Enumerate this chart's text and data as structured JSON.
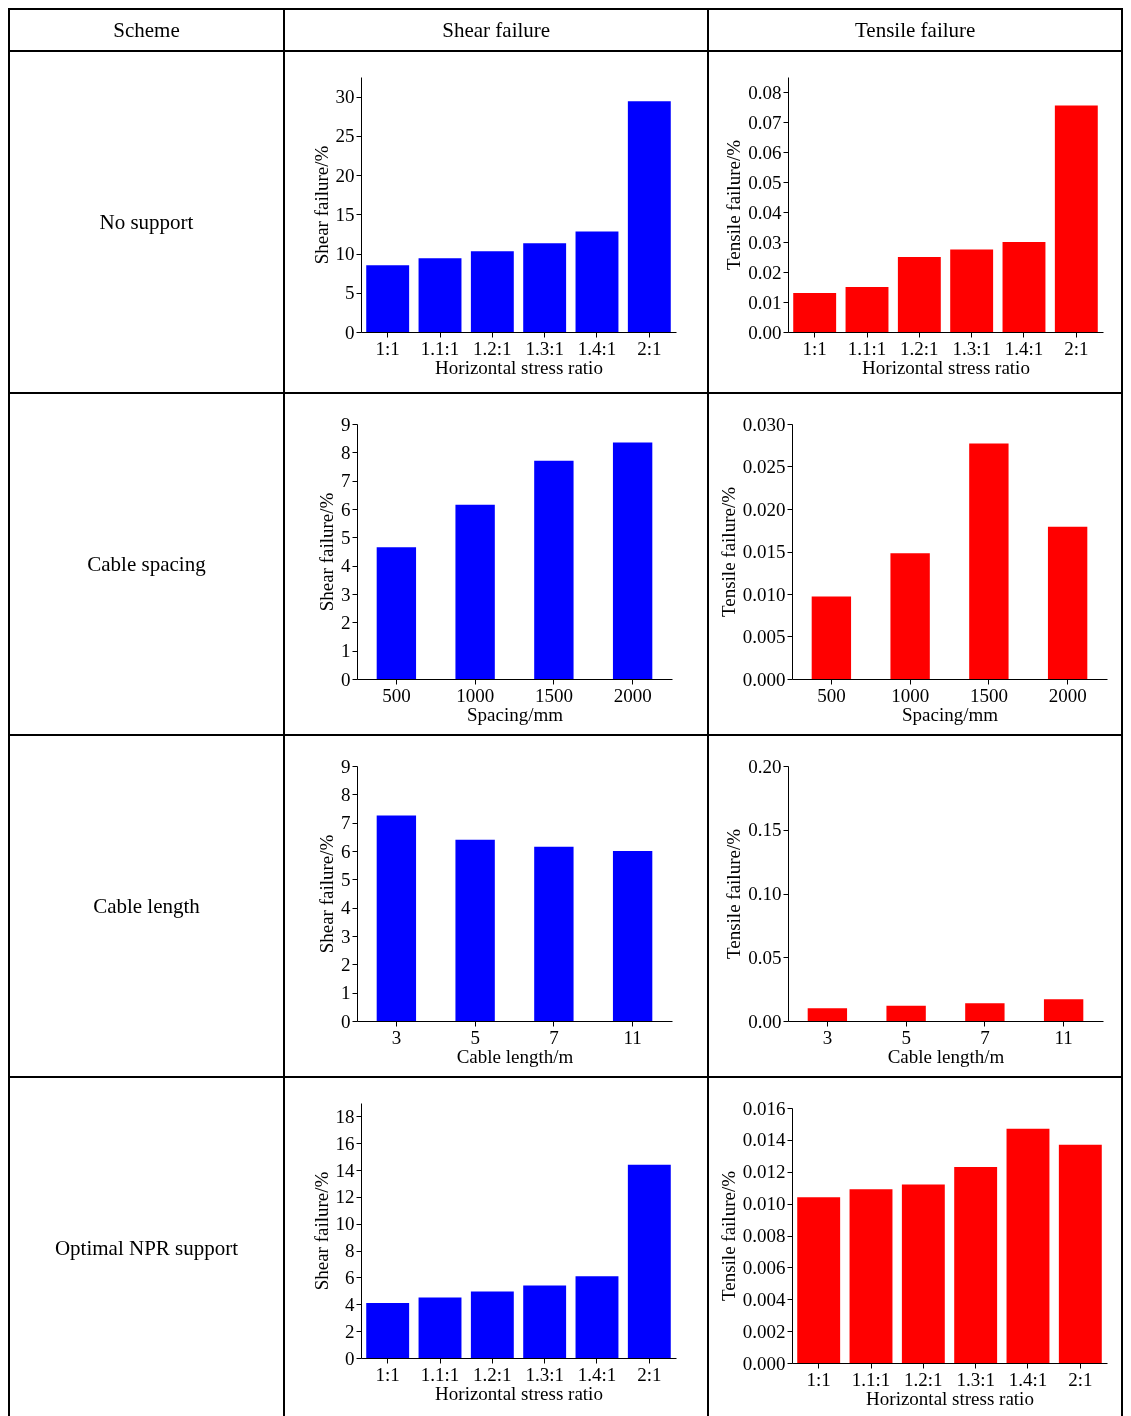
{
  "chart_data": [
    {
      "type": "other",
      "annotations": [
        "Scheme",
        "Shear failure",
        "Tensile failure"
      ]
    },
    {
      "type": "other",
      "annotations": [
        "No support"
      ]
    },
    {
      "type": "bar",
      "xlabel": "Horizontal stress ratio",
      "ylabel": "Shear failure/%",
      "categories": [
        "1:1",
        "1.1:1",
        "1.2:1",
        "1.3:1",
        "1.4:1",
        "2:1"
      ],
      "values": [
        8.5,
        9.4,
        10.3,
        11.3,
        12.8,
        29.4
      ],
      "color": "#0000ff",
      "ylim": [
        0,
        32.5
      ],
      "yticks": [
        0,
        5,
        10,
        15,
        20,
        25,
        30
      ]
    },
    {
      "type": "bar",
      "xlabel": "Horizontal stress ratio",
      "ylabel": "Tensile failure/%",
      "categories": [
        "1:1",
        "1.1:1",
        "1.2:1",
        "1.3:1",
        "1.4:1",
        "2:1"
      ],
      "values": [
        0.013,
        0.015,
        0.025,
        0.0275,
        0.03,
        0.0755
      ],
      "color": "#ff0000",
      "ylim": [
        0,
        0.085
      ],
      "yticks": [
        {
          "value": 0,
          "label": "0.00"
        },
        {
          "value": 0.01,
          "label": "0.01"
        },
        {
          "value": 0.02,
          "label": "0.02"
        },
        {
          "value": 0.03,
          "label": "0.03"
        },
        {
          "value": 0.04,
          "label": "0.04"
        },
        {
          "value": 0.05,
          "label": "0.05"
        },
        {
          "value": 0.06,
          "label": "0.06"
        },
        {
          "value": 0.07,
          "label": "0.07"
        },
        {
          "value": 0.08,
          "label": "0.08"
        }
      ]
    },
    {
      "type": "other",
      "annotations": [
        "Cable spacing"
      ]
    },
    {
      "type": "bar",
      "xlabel": "Spacing/mm",
      "ylabel": "Shear failure/%",
      "categories": [
        "500",
        "1000",
        "1500",
        "2000"
      ],
      "values": [
        4.65,
        6.15,
        7.7,
        8.35
      ],
      "color": "#0000ff",
      "ylim": [
        0,
        9
      ],
      "yticks": [
        0,
        1,
        2,
        3,
        4,
        5,
        6,
        7,
        8,
        9
      ]
    },
    {
      "type": "bar",
      "xlabel": "Spacing/mm",
      "ylabel": "Tensile failure/%",
      "categories": [
        "500",
        "1000",
        "1500",
        "2000"
      ],
      "values": [
        0.0097,
        0.0148,
        0.0277,
        0.0179
      ],
      "color": "#ff0000",
      "ylim": [
        0,
        0.03
      ],
      "yticks": [
        {
          "value": 0,
          "label": "0.000"
        },
        {
          "value": 0.005,
          "label": "0.005"
        },
        {
          "value": 0.01,
          "label": "0.010"
        },
        {
          "value": 0.015,
          "label": "0.015"
        },
        {
          "value": 0.02,
          "label": "0.020"
        },
        {
          "value": 0.025,
          "label": "0.025"
        },
        {
          "value": 0.03,
          "label": "0.030"
        }
      ]
    },
    {
      "type": "other",
      "annotations": [
        "Cable length"
      ]
    },
    {
      "type": "bar",
      "xlabel": "Cable length/m",
      "ylabel": "Shear failure/%",
      "categories": [
        "3",
        "5",
        "7",
        "11"
      ],
      "values": [
        7.25,
        6.4,
        6.15,
        6.0
      ],
      "color": "#0000ff",
      "ylim": [
        0,
        9
      ],
      "yticks": [
        0,
        1,
        2,
        3,
        4,
        5,
        6,
        7,
        8,
        9
      ]
    },
    {
      "type": "bar",
      "xlabel": "Cable length/m",
      "ylabel": "Tensile failure/%",
      "categories": [
        "3",
        "5",
        "7",
        "11"
      ],
      "values": [
        0.01,
        0.012,
        0.014,
        0.017
      ],
      "color": "#ff0000",
      "ylim": [
        0,
        0.2
      ],
      "yticks": [
        {
          "value": 0,
          "label": "0.00"
        },
        {
          "value": 0.05,
          "label": "0.05"
        },
        {
          "value": 0.1,
          "label": "0.10"
        },
        {
          "value": 0.15,
          "label": "0.15"
        },
        {
          "value": 0.2,
          "label": "0.20"
        }
      ]
    },
    {
      "type": "other",
      "annotations": [
        "Optimal NPR support"
      ]
    },
    {
      "type": "bar",
      "xlabel": "Horizontal stress ratio",
      "ylabel": "Shear failure/%",
      "categories": [
        "1:1",
        "1.1:1",
        "1.2:1",
        "1.3:1",
        "1.4:1",
        "2:1"
      ],
      "values": [
        4.1,
        4.5,
        4.95,
        5.4,
        6.1,
        14.4
      ],
      "color": "#0000ff",
      "ylim": [
        0,
        19
      ],
      "yticks": [
        0,
        2,
        4,
        6,
        8,
        10,
        12,
        14,
        16,
        18
      ]
    },
    {
      "type": "bar",
      "xlabel": "Horizontal stress ratio",
      "ylabel": "Tensile failure/%",
      "categories": [
        "1:1",
        "1.1:1",
        "1.2:1",
        "1.3:1",
        "1.4:1",
        "2:1"
      ],
      "values": [
        0.0104,
        0.0109,
        0.0112,
        0.0123,
        0.0147,
        0.0137
      ],
      "color": "#ff0000",
      "ylim": [
        0,
        0.016
      ],
      "yticks": [
        {
          "value": 0,
          "label": "0.000"
        },
        {
          "value": 0.002,
          "label": "0.002"
        },
        {
          "value": 0.004,
          "label": "0.004"
        },
        {
          "value": 0.006,
          "label": "0.006"
        },
        {
          "value": 0.008,
          "label": "0.008"
        },
        {
          "value": 0.01,
          "label": "0.010"
        },
        {
          "value": 0.012,
          "label": "0.012"
        },
        {
          "value": 0.014,
          "label": "0.014"
        },
        {
          "value": 0.016,
          "label": "0.016"
        }
      ]
    }
  ]
}
